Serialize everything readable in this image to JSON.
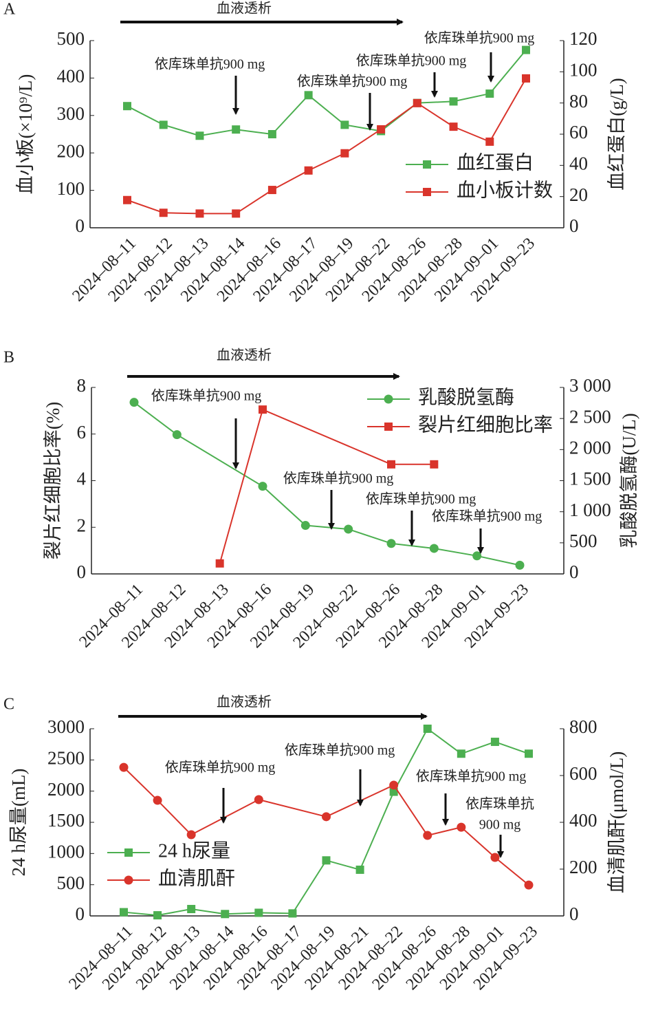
{
  "chart_data": [
    {
      "type": "line",
      "panel_label": "A",
      "banner": "血液透析",
      "y_label": "血小板(×10⁹/L)",
      "y2_label": "血红蛋白(g/L)",
      "categories": [
        "2024–08–11",
        "2024–08–12",
        "2024–08–13",
        "2024–08–14",
        "2024–08–16",
        "2024–08–17",
        "2024–08–19",
        "2024–08–22",
        "2024–08–26",
        "2024–08–28",
        "2024–09–01",
        "2024–09–23"
      ],
      "series": [
        {
          "name": "血红蛋白",
          "color": "#4caf50",
          "marker": "square",
          "axis": "y2",
          "values": [
            78,
            66,
            59,
            63,
            60,
            85,
            66,
            62,
            80,
            81,
            86,
            114
          ]
        },
        {
          "name": "血小板计数",
          "color": "#d9342b",
          "marker": "square",
          "axis": "y",
          "values": [
            74,
            40,
            38,
            38,
            101,
            153,
            199,
            263,
            333,
            270,
            230,
            399
          ]
        }
      ],
      "ylim": [
        0,
        500
      ],
      "yticks": [
        0,
        100,
        200,
        300,
        400,
        500
      ],
      "y2lim": [
        0,
        120
      ],
      "y2ticks": [
        0,
        20,
        40,
        60,
        80,
        100,
        120
      ],
      "legend": "lower right",
      "annotations": [
        {
          "text": [
            "依库珠单抗900 mg"
          ]
        },
        {
          "text": [
            "依库珠单抗900 mg"
          ]
        },
        {
          "text": [
            "依库珠单抗900 mg"
          ]
        },
        {
          "text": [
            "依库珠单抗900 mg"
          ]
        }
      ]
    },
    {
      "type": "line",
      "panel_label": "B",
      "banner": "血液透析",
      "y_label": "裂片红细胞比率(%)",
      "y2_label": "乳酸脱氢酶(U/L)",
      "categories": [
        "2024–08–11",
        "2024–08–12",
        "2024–08–13",
        "2024–08–16",
        "2024–08–19",
        "2024–08–22",
        "2024–08–26",
        "2024–08–28",
        "2024–09–01",
        "2024–09–23"
      ],
      "series": [
        {
          "name": "乳酸脱氢酶",
          "color": "#4caf50",
          "marker": "circle",
          "axis": "y2",
          "values": [
            2760,
            2240,
            null,
            1410,
            780,
            720,
            490,
            410,
            290,
            140
          ]
        },
        {
          "name": "裂片红细胞比率",
          "color": "#d9342b",
          "marker": "square",
          "axis": "y",
          "values": [
            null,
            null,
            0.45,
            7.05,
            null,
            null,
            4.7,
            4.7,
            null,
            null
          ]
        }
      ],
      "ylim": [
        0,
        8
      ],
      "yticks": [
        0,
        2,
        4,
        6,
        8
      ],
      "y2lim": [
        0,
        3000
      ],
      "y2ticks": [
        0,
        500,
        {
          "value": 1000,
          "label": "1 000"
        },
        {
          "value": 1500,
          "label": "1 500"
        },
        {
          "value": 2000,
          "label": "2 000"
        },
        {
          "value": 2500,
          "label": "2 500"
        },
        {
          "value": 3000,
          "label": "3 000"
        }
      ],
      "legend": "upper right",
      "annotations": [
        {
          "text": [
            "依库珠单抗900 mg"
          ]
        },
        {
          "text": [
            "依库珠单抗900 mg"
          ]
        },
        {
          "text": [
            "依库珠单抗900 mg"
          ]
        },
        {
          "text": [
            "依库珠单抗900 mg"
          ]
        }
      ]
    },
    {
      "type": "line",
      "panel_label": "C",
      "banner": "血液透析",
      "y_label": "24 h尿量(mL)",
      "y2_label": "血清肌酐(μmol/L)",
      "categories": [
        "2024–08–11",
        "2024–08–12",
        "2024–08–13",
        "2024–08–14",
        "2024–08–16",
        "2024–08–17",
        "2024–08–19",
        "2024–08–21",
        "2024–08–22",
        "2024–08–26",
        "2024–08–28",
        "2024–09–01",
        "2024–09–23"
      ],
      "series": [
        {
          "name": "24 h尿量",
          "color": "#4caf50",
          "marker": "square",
          "axis": "y",
          "values": [
            60,
            10,
            110,
            30,
            50,
            40,
            890,
            740,
            1990,
            3000,
            2600,
            2790,
            2600
          ]
        },
        {
          "name": "血清肌酐",
          "color": "#d9342b",
          "marker": "circle",
          "axis": "y2",
          "values": [
            635,
            494,
            347,
            null,
            497,
            null,
            424,
            null,
            559,
            344,
            379,
            250,
            132
          ]
        }
      ],
      "ylim": [
        0,
        3000
      ],
      "yticks": [
        0,
        500,
        1000,
        1500,
        2000,
        2500,
        3000
      ],
      "y2lim": [
        0,
        800
      ],
      "y2ticks": [
        0,
        200,
        400,
        600,
        800
      ],
      "legend": "lower left",
      "annotations": [
        {
          "text": [
            "依库珠单抗900 mg"
          ]
        },
        {
          "text": [
            "依库珠单抗900 mg"
          ]
        },
        {
          "text": [
            "依库珠单抗900 mg"
          ]
        },
        {
          "text": [
            "依库珠单抗",
            "900 mg"
          ]
        }
      ]
    }
  ]
}
